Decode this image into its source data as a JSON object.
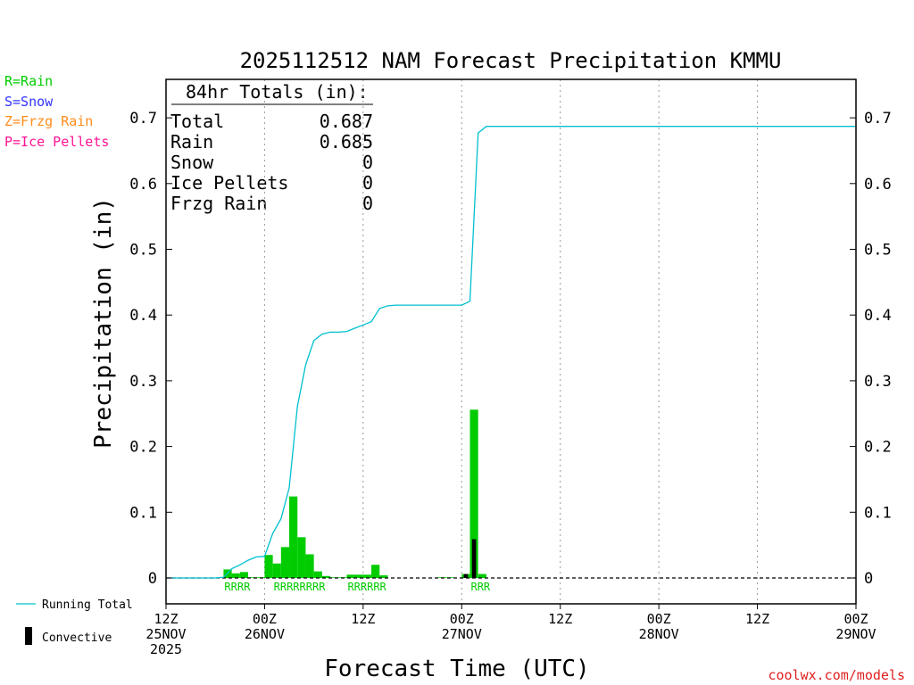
{
  "colors": {
    "rain": "#00cc00",
    "snow": "#3333ff",
    "frzg_rain": "#ff8c1a",
    "ice_pellets": "#ff1493",
    "running_total": "#00c0d0",
    "convective": "#000000",
    "brand": "#e02020"
  },
  "legend": {
    "rain": "R=Rain",
    "snow": "S=Snow",
    "frzg_rain": "Z=Frzg Rain",
    "ice_pellets": "P=Ice Pellets",
    "running_total": "Running Total",
    "convective": "Convective"
  },
  "totals": {
    "heading": "84hr Totals (in):",
    "rows": [
      {
        "label": "Total",
        "value": "0.687"
      },
      {
        "label": "Rain",
        "value": "0.685"
      },
      {
        "label": "Snow",
        "value": "0"
      },
      {
        "label": "Ice Pellets",
        "value": "0"
      },
      {
        "label": "Frzg Rain",
        "value": "0"
      }
    ]
  },
  "credit": "coolwx.com/models",
  "chart_data": {
    "type": "bar",
    "title": "2025112512 NAM Forecast Precipitation KMMU",
    "xlabel": "Forecast Time (UTC)",
    "ylabel": "Precipitation (in)",
    "ylim": [
      -0.04,
      0.76
    ],
    "xlim": [
      0,
      84
    ],
    "y_ticks": [
      0,
      0.1,
      0.2,
      0.3,
      0.4,
      0.5,
      0.6,
      0.7
    ],
    "y_tick_labels": [
      "0",
      "0.1",
      "0.2",
      "0.3",
      "0.4",
      "0.5",
      "0.6",
      "0.7"
    ],
    "x_ticks": [
      {
        "x": 0,
        "lines": [
          "12Z",
          "25NOV",
          "2025"
        ]
      },
      {
        "x": 12,
        "lines": [
          "00Z",
          "26NOV"
        ]
      },
      {
        "x": 24,
        "lines": [
          "12Z"
        ]
      },
      {
        "x": 36,
        "lines": [
          "00Z",
          "27NOV"
        ]
      },
      {
        "x": 48,
        "lines": [
          "12Z"
        ]
      },
      {
        "x": 60,
        "lines": [
          "00Z",
          "28NOV"
        ]
      },
      {
        "x": 72,
        "lines": [
          "12Z"
        ]
      },
      {
        "x": 84,
        "lines": [
          "00Z",
          "29NOV"
        ]
      }
    ],
    "grid": "dotted vertical",
    "bar_width_hours": 1,
    "rain_bars": [
      {
        "x": 8,
        "y": 0.013
      },
      {
        "x": 9,
        "y": 0.007
      },
      {
        "x": 10,
        "y": 0.009
      },
      {
        "x": 11,
        "y": 0.001
      },
      {
        "x": 12,
        "y": 0.001
      },
      {
        "x": 13,
        "y": 0.035
      },
      {
        "x": 14,
        "y": 0.022
      },
      {
        "x": 15,
        "y": 0.047
      },
      {
        "x": 16,
        "y": 0.124
      },
      {
        "x": 17,
        "y": 0.062
      },
      {
        "x": 18,
        "y": 0.036
      },
      {
        "x": 19,
        "y": 0.01
      },
      {
        "x": 20,
        "y": 0.003
      },
      {
        "x": 21,
        "y": 0.001
      },
      {
        "x": 22,
        "y": 0.001
      },
      {
        "x": 23,
        "y": 0.005
      },
      {
        "x": 24,
        "y": 0.005
      },
      {
        "x": 25,
        "y": 0.005
      },
      {
        "x": 26,
        "y": 0.02
      },
      {
        "x": 27,
        "y": 0.004
      },
      {
        "x": 34,
        "y": 0.001
      },
      {
        "x": 35,
        "y": 0.001
      },
      {
        "x": 37,
        "y": 0.006
      },
      {
        "x": 38,
        "y": 0.256
      },
      {
        "x": 39,
        "y": 0.006
      }
    ],
    "convective_bars": [
      {
        "x": 37,
        "y": 0.006
      },
      {
        "x": 38,
        "y": 0.059
      }
    ],
    "running_total": {
      "x": [
        0,
        6,
        7,
        8,
        9,
        10,
        11,
        12,
        13,
        14,
        15,
        16,
        17,
        18,
        19,
        20,
        21,
        22,
        23,
        24,
        25,
        26,
        27,
        28,
        29,
        30,
        31,
        32,
        33,
        34,
        35,
        36,
        37,
        38,
        39,
        84
      ],
      "y": [
        0,
        0,
        0.001,
        0.014,
        0.02,
        0.027,
        0.032,
        0.033,
        0.068,
        0.09,
        0.137,
        0.261,
        0.324,
        0.361,
        0.371,
        0.374,
        0.374,
        0.375,
        0.38,
        0.385,
        0.39,
        0.41,
        0.414,
        0.415,
        0.415,
        0.415,
        0.415,
        0.415,
        0.415,
        0.415,
        0.415,
        0.415,
        0.421,
        0.677,
        0.687,
        0.687
      ]
    },
    "ptype_annotations": [
      {
        "x_start": 7,
        "text": "RRRR"
      },
      {
        "x_start": 13,
        "text": "RRRRRRRR"
      },
      {
        "x_start": 22,
        "text": "RRRRRR"
      },
      {
        "x_start": 37,
        "text": "RRR"
      }
    ]
  }
}
